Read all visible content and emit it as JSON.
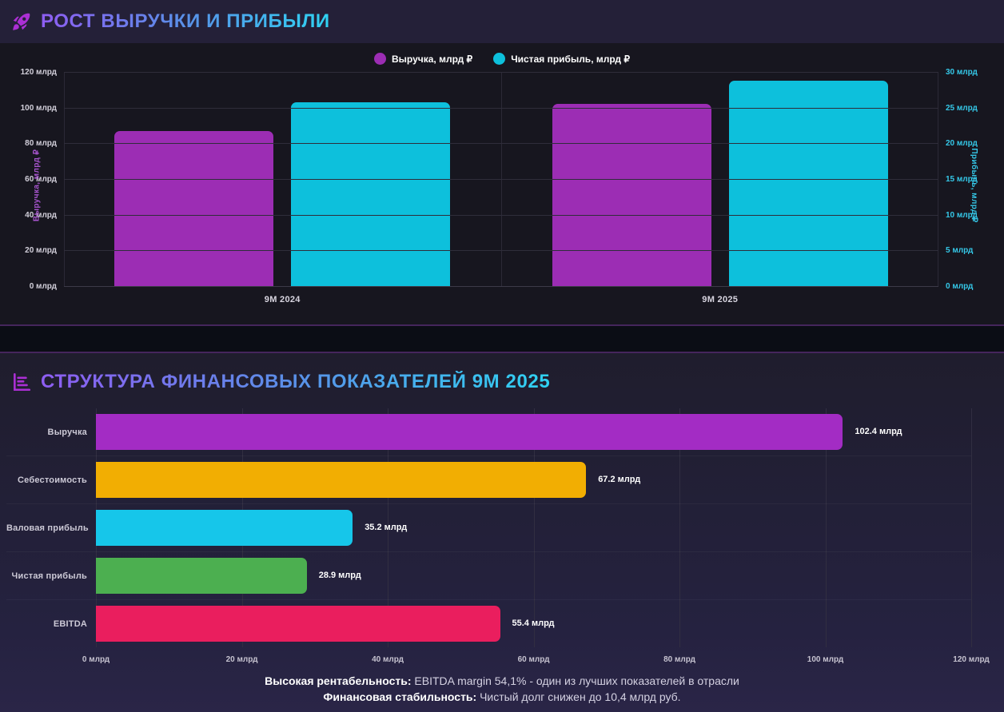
{
  "sections": {
    "growth": {
      "title": "Рост выручки и прибыли"
    },
    "structure": {
      "title": "Структура финансовых показателей 9М 2025"
    }
  },
  "icons": {
    "growth_icon": "rocket-icon",
    "structure_icon": "bar-chart-icon",
    "accent_color": "#ab2fd4"
  },
  "chart_data": [
    {
      "id": "growth-chart",
      "type": "bar",
      "title": "Рост выручки и прибыли",
      "categories": [
        "9М 2024",
        "9М 2025"
      ],
      "series": [
        {
          "name": "Выручка, млрд ₽",
          "axis": "left",
          "color": "#9c2db4",
          "values": [
            87.5,
            102.4
          ]
        },
        {
          "name": "Чистая прибыль, млрд ₽",
          "axis": "right",
          "color": "#0dc0dc",
          "values": [
            25.9,
            28.9
          ]
        }
      ],
      "left_axis": {
        "title": "Выручка, млрд ₽",
        "min": 0,
        "max": 120,
        "tick_step": 20,
        "tick_suffix": " млрд"
      },
      "right_axis": {
        "title": "Прибыль, млрд ₽",
        "min": 0,
        "max": 30,
        "tick_step": 5,
        "tick_suffix": " млрд"
      },
      "legend_position": "top",
      "grid": true
    },
    {
      "id": "structure-chart",
      "type": "bar-horizontal",
      "title": "Структура финансовых показателей 9М 2025",
      "categories": [
        "Выручка",
        "Себестоимость",
        "Валовая прибыль",
        "Чистая прибыль",
        "EBITDA"
      ],
      "values": [
        102.4,
        67.2,
        35.2,
        28.9,
        55.4
      ],
      "value_labels": [
        "102.4 млрд",
        "67.2 млрд",
        "35.2 млрд",
        "28.9 млрд",
        "55.4 млрд"
      ],
      "bar_colors": [
        "#a32cc4",
        "#f2ae02",
        "#16c6ea",
        "#4caf50",
        "#ea1e5e"
      ],
      "x_axis": {
        "min": 0,
        "max": 120,
        "tick_step": 20,
        "tick_suffix": " млрд"
      },
      "legend_position": "none",
      "grid": true
    }
  ],
  "footer": {
    "line1_bold": "Высокая рентабельность:",
    "line1_text": " EBITDA margin 54,1% - один из лучших показателей в отрасли",
    "line2_bold": "Финансовая стабильность:",
    "line2_text": " Чистый долг снижен до 10,4 млрд руб."
  }
}
